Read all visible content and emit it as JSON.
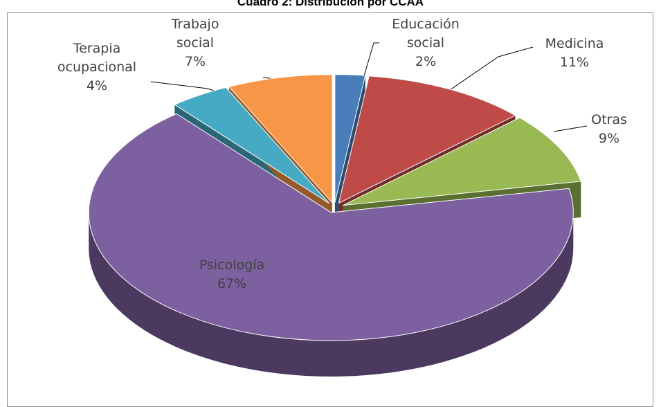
{
  "chart_data": {
    "type": "pie3d",
    "title": "Cuadro 2: Distribución por CCAA",
    "categories": [
      "Educación social",
      "Medicina",
      "Otras",
      "Psicología",
      "Terapia ocupacional",
      "Trabajo social"
    ],
    "values": [
      2,
      11,
      9,
      67,
      4,
      7
    ],
    "value_labels": [
      "2%",
      "11%",
      "9%",
      "67%",
      "4%",
      "7%"
    ],
    "colors": [
      "#4a7ebb",
      "#be4b48",
      "#98b954",
      "#7d60a0",
      "#46aac5",
      "#f79646"
    ]
  }
}
